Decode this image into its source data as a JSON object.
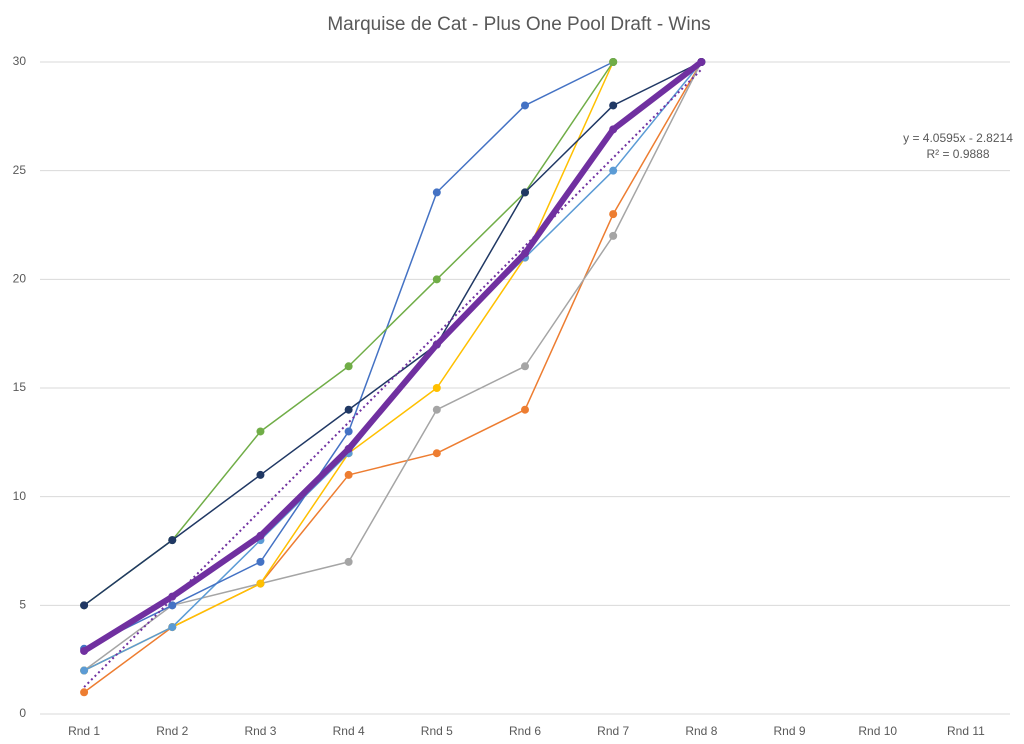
{
  "chart_data": {
    "type": "line",
    "title": "Marquise de Cat - Plus One Pool Draft - Wins",
    "categories": [
      "Rnd 1",
      "Rnd 2",
      "Rnd 3",
      "Rnd 4",
      "Rnd 5",
      "Rnd 6",
      "Rnd 7",
      "Rnd 8",
      "Rnd 9",
      "Rnd 10",
      "Rnd 11"
    ],
    "series": [
      {
        "color": "#ed7d31",
        "values": [
          1,
          4,
          6,
          11,
          12,
          14,
          23,
          30,
          null,
          null,
          null
        ]
      },
      {
        "color": "#a5a5a5",
        "values": [
          2,
          5,
          6,
          7,
          14,
          16,
          22,
          30,
          null,
          null,
          null
        ]
      },
      {
        "color": "#ffc000",
        "values": [
          2,
          4,
          6,
          12,
          15,
          21,
          30,
          null,
          null,
          null,
          null
        ]
      },
      {
        "color": "#5b9bd5",
        "values": [
          2,
          4,
          8,
          12,
          17,
          21,
          25,
          30,
          null,
          null,
          null
        ]
      },
      {
        "color": "#4472c4",
        "values": [
          3,
          5,
          7,
          13,
          24,
          28,
          30,
          null,
          null,
          null,
          null
        ]
      },
      {
        "color": "#70ad47",
        "values": [
          5,
          8,
          13,
          16,
          20,
          24,
          30,
          null,
          null,
          null,
          null
        ]
      },
      {
        "color": "#203864",
        "values": [
          5,
          8,
          11,
          14,
          17,
          24,
          28,
          30,
          null,
          null,
          null
        ]
      },
      {
        "color": "#7030a0",
        "width": 6,
        "values": [
          2.9,
          5.4,
          8.2,
          12.2,
          17,
          21.2,
          26.9,
          30,
          null,
          null,
          null
        ]
      }
    ],
    "trendline": {
      "color": "#7030a0",
      "slope": 4.0595,
      "intercept": -2.8214,
      "x_from": 1,
      "x_to": 8,
      "label": [
        "y = 4.0595x - 2.8214",
        "R² = 0.9888"
      ]
    },
    "ylim": [
      0,
      30
    ],
    "yticks": [
      0,
      5,
      10,
      15,
      20,
      25,
      30
    ],
    "grid": true
  }
}
